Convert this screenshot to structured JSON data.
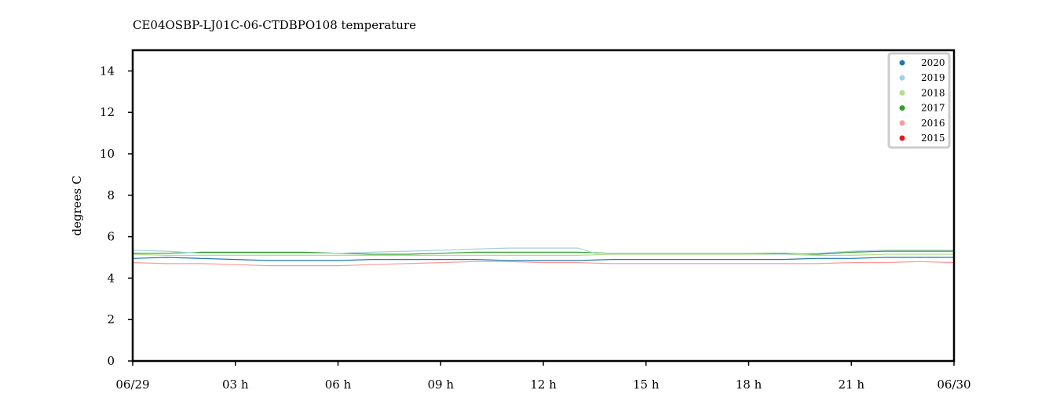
{
  "chart_data": {
    "type": "line",
    "title": "CE04OSBP-LJ01C-06-CTDBPO108 temperature",
    "xlabel": "",
    "ylabel": "degrees C",
    "x_ticks": [
      "06/29",
      "03 h",
      "06 h",
      "09 h",
      "12 h",
      "15 h",
      "18 h",
      "21 h",
      "06/30"
    ],
    "xlim_hours": [
      0,
      24
    ],
    "ylim": [
      0,
      15
    ],
    "y_ticks": [
      0,
      2,
      4,
      6,
      8,
      10,
      12,
      14
    ],
    "grid": false,
    "legend_position": "top-right",
    "series": [
      {
        "name": "2020",
        "color": "#1f78b4",
        "points": [
          [
            0,
            4.95
          ],
          [
            1,
            5.0
          ],
          [
            2,
            4.95
          ],
          [
            3,
            4.9
          ],
          [
            4,
            4.85
          ],
          [
            5,
            4.85
          ],
          [
            6,
            4.85
          ],
          [
            7,
            4.9
          ],
          [
            8,
            4.9
          ],
          [
            9,
            4.9
          ],
          [
            10,
            4.9
          ],
          [
            11,
            4.85
          ],
          [
            12,
            4.85
          ],
          [
            13,
            4.85
          ],
          [
            14,
            4.9
          ],
          [
            15,
            4.9
          ],
          [
            16,
            4.9
          ],
          [
            17,
            4.9
          ],
          [
            18,
            4.9
          ],
          [
            19,
            4.9
          ],
          [
            20,
            4.95
          ],
          [
            21,
            4.95
          ],
          [
            22,
            5.0
          ],
          [
            23,
            5.0
          ],
          [
            24,
            5.0
          ]
        ]
      },
      {
        "name": "2019",
        "color": "#a6cee3",
        "points": [
          [
            0,
            5.35
          ],
          [
            1,
            5.3
          ],
          [
            2,
            5.2
          ],
          [
            3,
            5.2
          ],
          [
            4,
            5.2
          ],
          [
            5,
            5.2
          ],
          [
            6,
            5.2
          ],
          [
            7,
            5.25
          ],
          [
            8,
            5.3
          ],
          [
            9,
            5.35
          ],
          [
            10,
            5.4
          ],
          [
            11,
            5.45
          ],
          [
            12,
            5.45
          ],
          [
            13,
            5.45
          ],
          [
            13.5,
            5.2
          ],
          [
            14,
            5.2
          ],
          [
            15,
            5.2
          ],
          [
            16,
            5.2
          ],
          [
            17,
            5.2
          ],
          [
            18,
            5.2
          ],
          [
            19,
            5.15
          ],
          [
            20,
            5.2
          ],
          [
            21,
            5.3
          ],
          [
            22,
            5.35
          ],
          [
            23,
            5.35
          ],
          [
            24,
            5.35
          ]
        ]
      },
      {
        "name": "2018",
        "color": "#b2df8a",
        "points": [
          [
            0,
            5.15
          ],
          [
            1,
            5.1
          ],
          [
            2,
            5.1
          ],
          [
            3,
            5.1
          ],
          [
            4,
            5.1
          ],
          [
            5,
            5.1
          ],
          [
            6,
            5.1
          ],
          [
            7,
            5.1
          ],
          [
            8,
            5.1
          ],
          [
            9,
            5.1
          ],
          [
            10,
            5.1
          ],
          [
            11,
            5.1
          ],
          [
            12,
            5.1
          ],
          [
            13,
            5.1
          ],
          [
            14,
            5.15
          ],
          [
            15,
            5.15
          ],
          [
            16,
            5.15
          ],
          [
            17,
            5.15
          ],
          [
            18,
            5.15
          ],
          [
            19,
            5.15
          ],
          [
            20,
            5.1
          ],
          [
            21,
            5.1
          ],
          [
            22,
            5.15
          ],
          [
            23,
            5.15
          ],
          [
            24,
            5.15
          ]
        ]
      },
      {
        "name": "2017",
        "color": "#33a02c",
        "points": [
          [
            0,
            5.2
          ],
          [
            1,
            5.2
          ],
          [
            2,
            5.25
          ],
          [
            3,
            5.25
          ],
          [
            4,
            5.25
          ],
          [
            5,
            5.25
          ],
          [
            6,
            5.2
          ],
          [
            7,
            5.15
          ],
          [
            8,
            5.15
          ],
          [
            9,
            5.2
          ],
          [
            10,
            5.25
          ],
          [
            11,
            5.25
          ],
          [
            12,
            5.25
          ],
          [
            13,
            5.25
          ],
          [
            14,
            5.2
          ],
          [
            15,
            5.2
          ],
          [
            16,
            5.2
          ],
          [
            17,
            5.2
          ],
          [
            18,
            5.2
          ],
          [
            19,
            5.2
          ],
          [
            20,
            5.15
          ],
          [
            21,
            5.25
          ],
          [
            22,
            5.3
          ],
          [
            23,
            5.3
          ],
          [
            24,
            5.3
          ]
        ]
      },
      {
        "name": "2016",
        "color": "#fb9a99",
        "points": [
          [
            0,
            4.75
          ],
          [
            1,
            4.7
          ],
          [
            2,
            4.7
          ],
          [
            3,
            4.65
          ],
          [
            4,
            4.6
          ],
          [
            5,
            4.6
          ],
          [
            6,
            4.6
          ],
          [
            7,
            4.65
          ],
          [
            8,
            4.7
          ],
          [
            9,
            4.75
          ],
          [
            10,
            4.8
          ],
          [
            11,
            4.8
          ],
          [
            12,
            4.75
          ],
          [
            13,
            4.75
          ],
          [
            14,
            4.7
          ],
          [
            15,
            4.7
          ],
          [
            16,
            4.7
          ],
          [
            17,
            4.7
          ],
          [
            18,
            4.7
          ],
          [
            19,
            4.7
          ],
          [
            20,
            4.7
          ],
          [
            21,
            4.75
          ],
          [
            22,
            4.75
          ],
          [
            23,
            4.8
          ],
          [
            24,
            4.75
          ]
        ]
      },
      {
        "name": "2015",
        "color": "#e31a1c",
        "points": []
      }
    ]
  }
}
